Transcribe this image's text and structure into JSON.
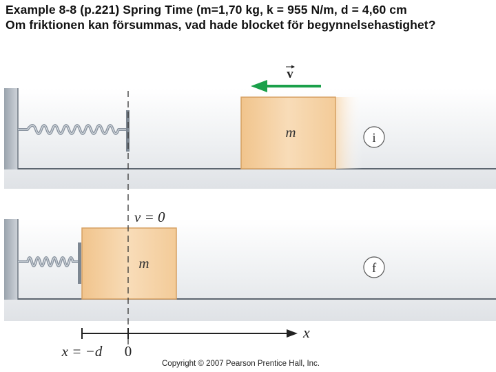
{
  "header": {
    "line1": "Example 8-8 (p.221) Spring Time (m=1,70 kg, k = 955 N/m, d = 4,60 cm",
    "line2": "Om friktionen kan försummas, vad hade blocket för begynnelsehastighet?"
  },
  "diagram": {
    "velocity_label": "v",
    "top_panel": {
      "block_label": "m",
      "state_label": "i"
    },
    "bottom_panel": {
      "block_label": "m",
      "state_label": "f",
      "velocity_text": "v = 0"
    },
    "axis": {
      "axis_label": "x",
      "left_tick_label": "x = −d",
      "origin_tick_label": "0"
    },
    "colors": {
      "panel": "#e9ebee",
      "block": "#f3cfa0",
      "block_edge": "#d6a062",
      "arrow": "#1aa04a",
      "spring": "#8a94a0"
    }
  },
  "footer": {
    "copyright": "Copyright © 2007 Pearson Prentice Hall, Inc."
  }
}
